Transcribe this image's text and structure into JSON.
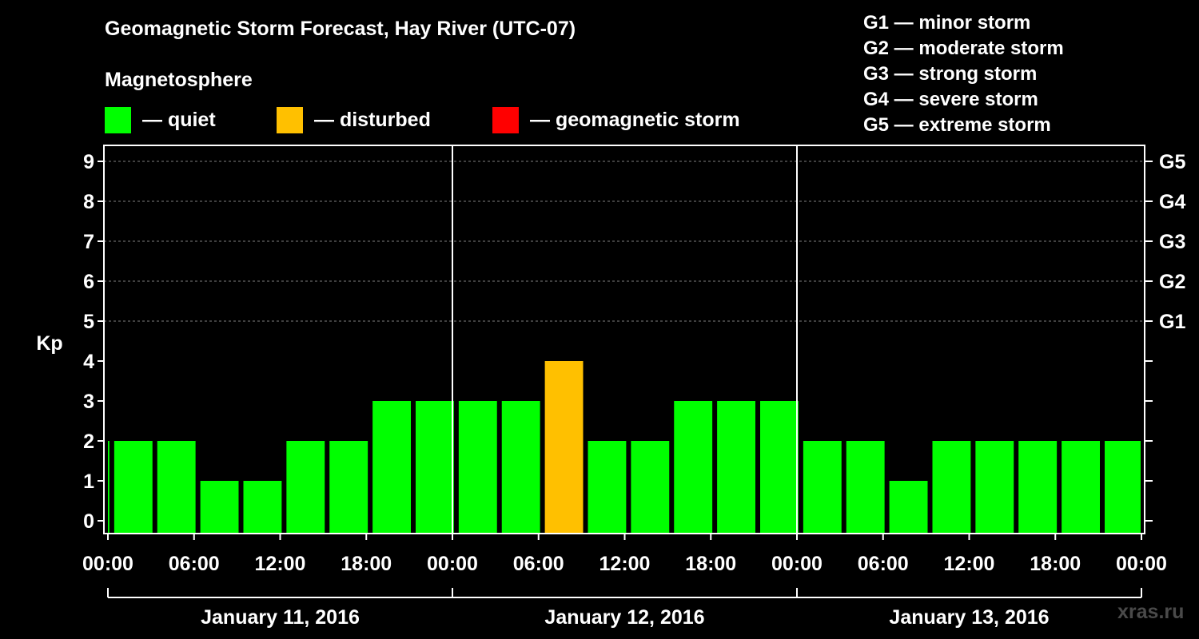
{
  "title": "Geomagnetic Storm Forecast, Hay River (UTC-07)",
  "subtitle": "Magnetosphere",
  "legend": [
    {
      "label": "— quiet",
      "color": "#00ff00"
    },
    {
      "label": "— disturbed",
      "color": "#ffc000"
    },
    {
      "label": "— geomagnetic storm",
      "color": "#ff0000"
    }
  ],
  "storm_levels": [
    "G1 — minor storm",
    "G2 — moderate storm",
    "G3 — strong storm",
    "G4 — severe storm",
    "G5 — extreme storm"
  ],
  "watermark": "xras.ru",
  "chart_data": {
    "type": "bar",
    "ylabel": "Kp",
    "ylim": [
      0,
      9
    ],
    "yticks": [
      "0",
      "1",
      "2",
      "3",
      "4",
      "5",
      "6",
      "7",
      "8",
      "9"
    ],
    "right_axis_labels": [
      {
        "kp": 5,
        "label": "G1"
      },
      {
        "kp": 6,
        "label": "G2"
      },
      {
        "kp": 7,
        "label": "G3"
      },
      {
        "kp": 8,
        "label": "G4"
      },
      {
        "kp": 9,
        "label": "G5"
      }
    ],
    "xtick_labels": [
      "00:00",
      "06:00",
      "12:00",
      "18:00",
      "00:00",
      "06:00",
      "12:00",
      "18:00",
      "00:00",
      "06:00",
      "12:00",
      "18:00",
      "00:00"
    ],
    "date_labels": [
      "January 11, 2016",
      "January 12, 2016",
      "January 13, 2016"
    ],
    "grid": true,
    "values": [
      2,
      2,
      2,
      1,
      1,
      2,
      2,
      3,
      3,
      3,
      3,
      4,
      2,
      2,
      3,
      3,
      3,
      2,
      2,
      1,
      2,
      2,
      2,
      2,
      2
    ],
    "colors": {
      "quiet": "#00ff00",
      "disturbed": "#ffc000",
      "storm": "#ff0000"
    }
  }
}
